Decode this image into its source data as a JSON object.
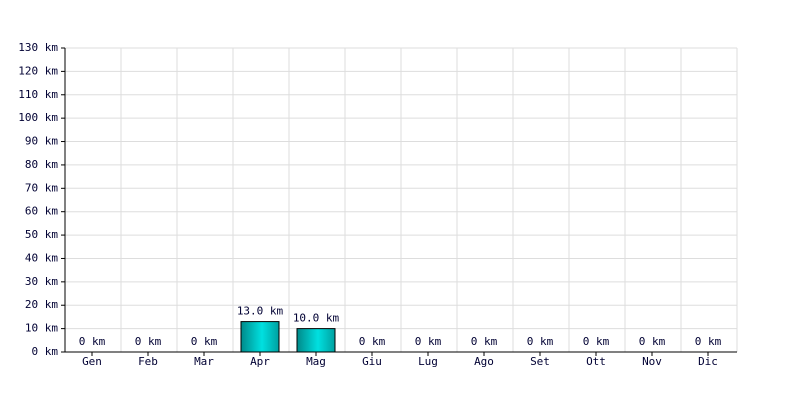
{
  "chart_data": {
    "type": "bar",
    "categories": [
      "Gen",
      "Feb",
      "Mar",
      "Apr",
      "Mag",
      "Giu",
      "Lug",
      "Ago",
      "Set",
      "Ott",
      "Nov",
      "Dic"
    ],
    "values": [
      0,
      0,
      0,
      13,
      10,
      0,
      0,
      0,
      0,
      0,
      0,
      0
    ],
    "value_labels": [
      "0 km",
      "0 km",
      "0 km",
      "13.0 km",
      "10.0 km",
      "0 km",
      "0 km",
      "0 km",
      "0 km",
      "0 km",
      "0 km",
      "0 km"
    ],
    "color": "#00e0e0",
    "ylim": [
      0,
      130
    ],
    "yticks": [
      {
        "value": 0,
        "label": "0 km"
      },
      {
        "value": 10,
        "label": "10 km"
      },
      {
        "value": 20,
        "label": "20 km"
      },
      {
        "value": 30,
        "label": "30 km"
      },
      {
        "value": 40,
        "label": "40 km"
      },
      {
        "value": 50,
        "label": "50 km"
      },
      {
        "value": 60,
        "label": "60 km"
      },
      {
        "value": 70,
        "label": "70 km"
      },
      {
        "value": 80,
        "label": "80 km"
      },
      {
        "value": 90,
        "label": "90 km"
      },
      {
        "value": 100,
        "label": "100 km"
      },
      {
        "value": 110,
        "label": "110 km"
      },
      {
        "value": 120,
        "label": "120 km"
      },
      {
        "value": 130,
        "label": "130 km"
      }
    ],
    "grid": true
  }
}
